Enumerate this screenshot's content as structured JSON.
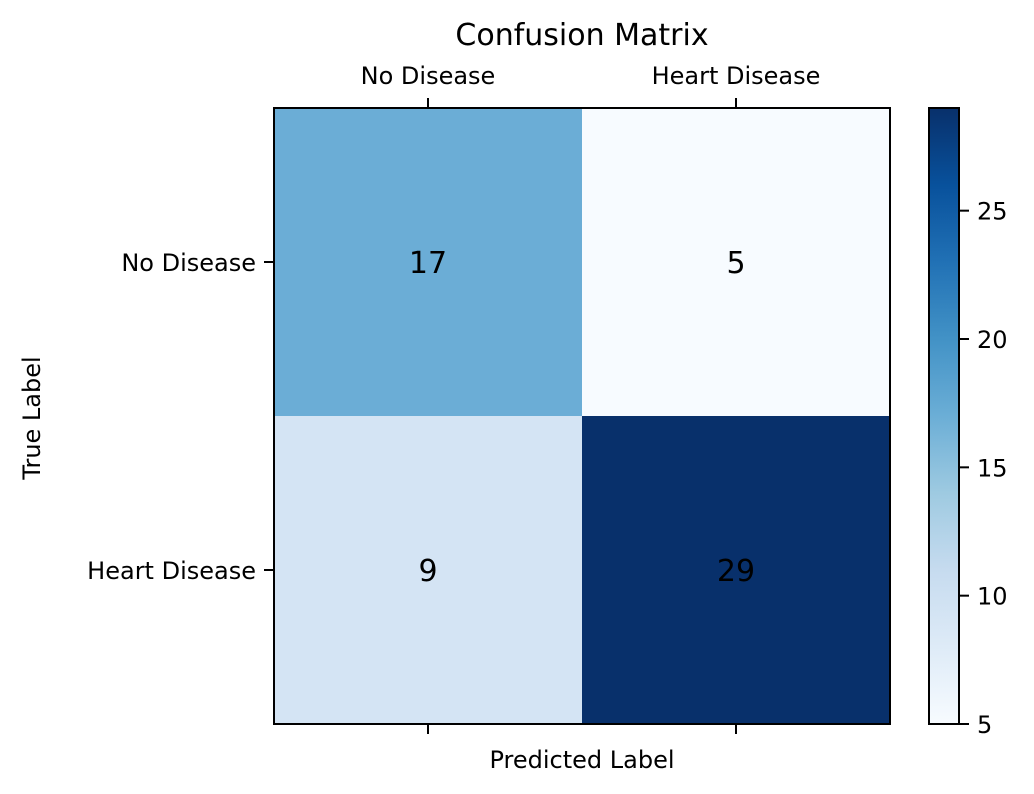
{
  "chart_data": {
    "type": "heatmap",
    "title": "Confusion Matrix",
    "xlabel": "Predicted Label",
    "ylabel": "True Label",
    "x_categories": [
      "No Disease",
      "Heart Disease"
    ],
    "y_categories": [
      "No Disease",
      "Heart Disease"
    ],
    "values": [
      [
        17,
        5
      ],
      [
        9,
        29
      ]
    ],
    "colormap": "Blues",
    "color_range": [
      5,
      29
    ],
    "colorbar_ticks": [
      5,
      10,
      15,
      20,
      25
    ],
    "colorbar_tick_labels": [
      "5",
      "10",
      "15",
      "20",
      "25"
    ],
    "cell_colors": [
      [
        "#6badd6",
        "#f7fbff"
      ],
      [
        "#d4e4f4",
        "#08306b"
      ]
    ],
    "colorbar_colors": [
      "#f7fbff",
      "#deebf7",
      "#c6dbef",
      "#9ecae1",
      "#6baed6",
      "#4292c6",
      "#2171b5",
      "#08519c",
      "#08306b"
    ],
    "grid": false,
    "x_tick_position": "top"
  }
}
